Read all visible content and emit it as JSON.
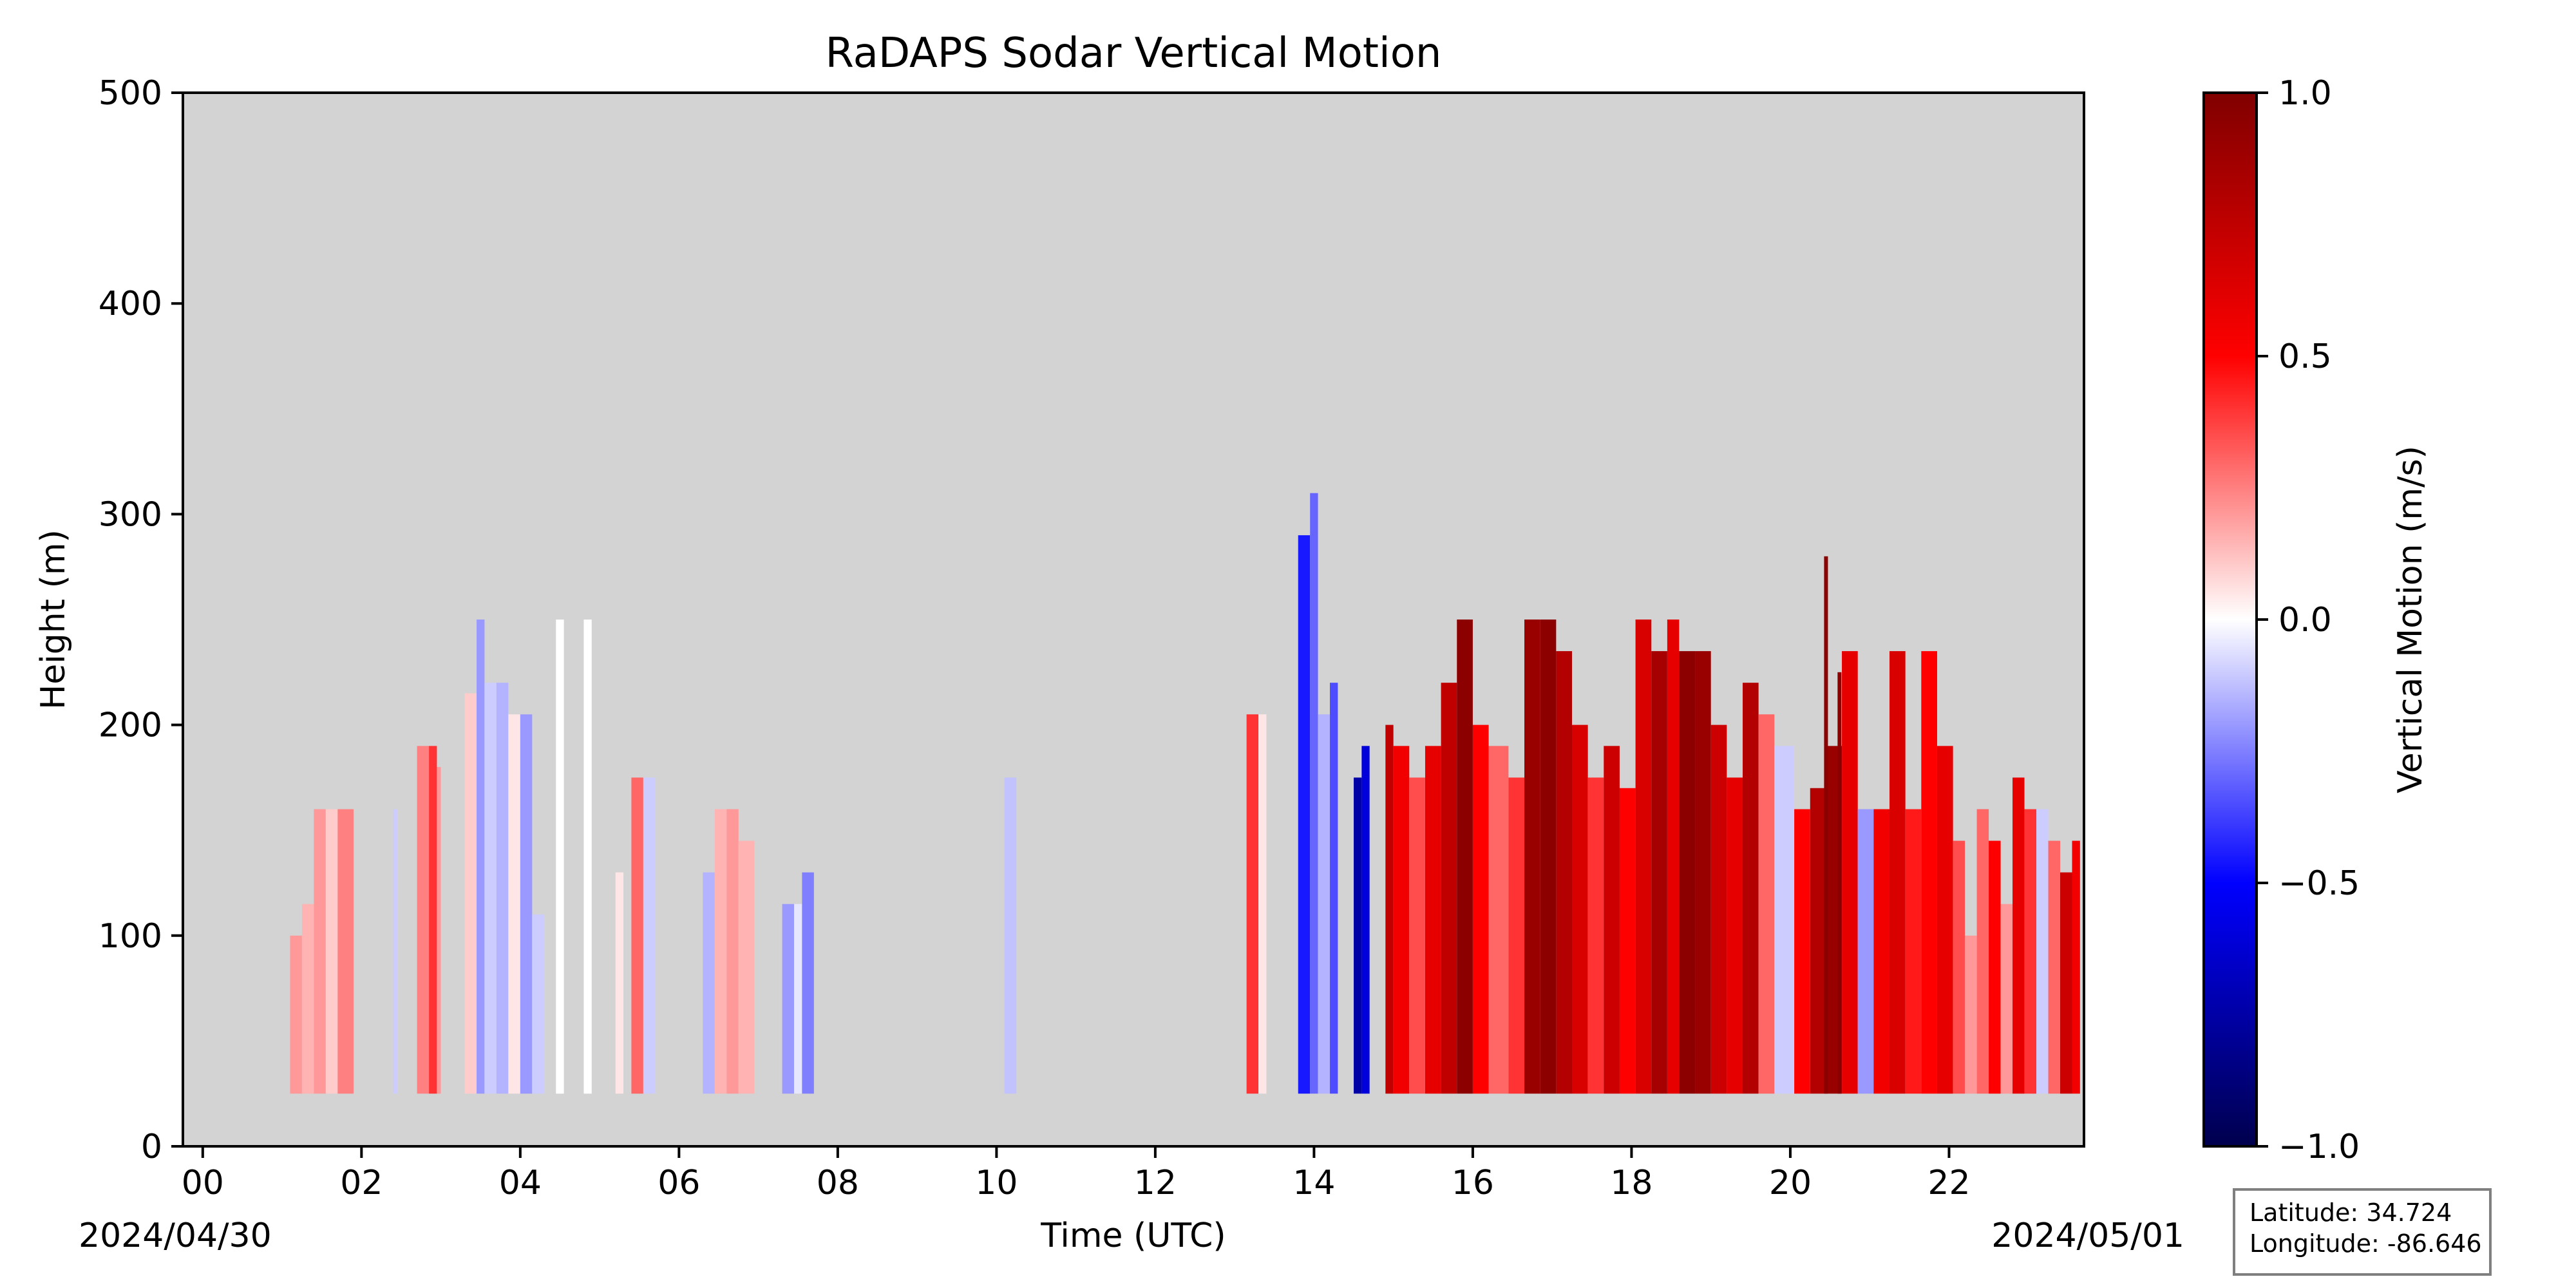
{
  "chart_data": {
    "type": "heatmap",
    "title": "RaDAPS Sodar Vertical Motion",
    "xlabel": "Time (UTC)",
    "ylabel": "Height (m)",
    "xlim": [
      -0.25,
      23.7
    ],
    "ylim": [
      0,
      500
    ],
    "x_ticks": [
      "00",
      "02",
      "04",
      "06",
      "08",
      "10",
      "12",
      "14",
      "16",
      "18",
      "20",
      "22"
    ],
    "x_tick_values": [
      0,
      2,
      4,
      6,
      8,
      10,
      12,
      14,
      16,
      18,
      20,
      22
    ],
    "y_ticks": [
      0,
      100,
      200,
      300,
      400,
      500
    ],
    "start_date": "2024/04/30",
    "end_date": "2024/05/01",
    "background_color": "#d3d3d3",
    "colorbar": {
      "label": "Vertical Motion (m/s)",
      "range": [
        -1.0,
        1.0
      ],
      "ticks": [
        "1.0",
        "0.5",
        "0.0",
        "−0.5",
        "−1.0"
      ],
      "tick_values": [
        1.0,
        0.5,
        0.0,
        -0.5,
        -1.0
      ],
      "colormap": "seismic"
    },
    "data_min_height": 25,
    "columns": [
      {
        "t0": 1.1,
        "t1": 1.25,
        "top": 100,
        "v": 0.2
      },
      {
        "t0": 1.25,
        "t1": 1.4,
        "top": 115,
        "v": 0.15
      },
      {
        "t0": 1.4,
        "t1": 1.55,
        "top": 160,
        "v": 0.2
      },
      {
        "t0": 1.55,
        "t1": 1.7,
        "top": 160,
        "v": 0.1
      },
      {
        "t0": 1.7,
        "t1": 1.9,
        "top": 160,
        "v": 0.25
      },
      {
        "t0": 2.4,
        "t1": 2.45,
        "top": 160,
        "v": -0.1
      },
      {
        "t0": 2.7,
        "t1": 2.85,
        "top": 190,
        "v": 0.25
      },
      {
        "t0": 2.85,
        "t1": 2.95,
        "top": 190,
        "v": 0.4
      },
      {
        "t0": 2.95,
        "t1": 3.0,
        "top": 180,
        "v": 0.2
      },
      {
        "t0": 3.3,
        "t1": 3.45,
        "top": 215,
        "v": 0.1
      },
      {
        "t0": 3.45,
        "t1": 3.55,
        "top": 250,
        "v": -0.2
      },
      {
        "t0": 3.55,
        "t1": 3.7,
        "top": 220,
        "v": -0.1
      },
      {
        "t0": 3.7,
        "t1": 3.85,
        "top": 220,
        "v": -0.15
      },
      {
        "t0": 3.85,
        "t1": 4.0,
        "top": 205,
        "v": 0.05
      },
      {
        "t0": 4.0,
        "t1": 4.15,
        "top": 205,
        "v": -0.2
      },
      {
        "t0": 4.15,
        "t1": 4.3,
        "top": 110,
        "v": -0.1
      },
      {
        "t0": 4.45,
        "t1": 4.55,
        "top": 250,
        "v": 0.0
      },
      {
        "t0": 4.8,
        "t1": 4.9,
        "top": 250,
        "v": 0.0
      },
      {
        "t0": 5.2,
        "t1": 5.3,
        "top": 130,
        "v": 0.05
      },
      {
        "t0": 5.4,
        "t1": 5.55,
        "top": 175,
        "v": 0.3
      },
      {
        "t0": 5.55,
        "t1": 5.7,
        "top": 175,
        "v": -0.1
      },
      {
        "t0": 6.3,
        "t1": 6.45,
        "top": 130,
        "v": -0.15
      },
      {
        "t0": 6.45,
        "t1": 6.6,
        "top": 160,
        "v": 0.15
      },
      {
        "t0": 6.6,
        "t1": 6.75,
        "top": 160,
        "v": 0.2
      },
      {
        "t0": 6.75,
        "t1": 6.95,
        "top": 145,
        "v": 0.15
      },
      {
        "t0": 7.3,
        "t1": 7.45,
        "top": 115,
        "v": -0.2
      },
      {
        "t0": 7.45,
        "t1": 7.55,
        "top": 115,
        "v": -0.05
      },
      {
        "t0": 7.55,
        "t1": 7.7,
        "top": 130,
        "v": -0.25
      },
      {
        "t0": 10.1,
        "t1": 10.25,
        "top": 175,
        "v": -0.12
      },
      {
        "t0": 13.15,
        "t1": 13.3,
        "top": 205,
        "v": 0.4
      },
      {
        "t0": 13.3,
        "t1": 13.4,
        "top": 205,
        "v": 0.05
      },
      {
        "t0": 13.8,
        "t1": 13.95,
        "top": 290,
        "v": -0.45
      },
      {
        "t0": 13.95,
        "t1": 14.05,
        "top": 310,
        "v": -0.3
      },
      {
        "t0": 14.05,
        "t1": 14.2,
        "top": 205,
        "v": -0.15
      },
      {
        "t0": 14.2,
        "t1": 14.3,
        "top": 220,
        "v": -0.35
      },
      {
        "t0": 14.5,
        "t1": 14.6,
        "top": 175,
        "v": -0.75
      },
      {
        "t0": 14.6,
        "t1": 14.7,
        "top": 190,
        "v": -0.6
      },
      {
        "t0": 14.9,
        "t1": 15.0,
        "top": 200,
        "v": 0.75
      },
      {
        "t0": 15.0,
        "t1": 15.2,
        "top": 190,
        "v": 0.55
      },
      {
        "t0": 15.2,
        "t1": 15.4,
        "top": 175,
        "v": 0.35
      },
      {
        "t0": 15.4,
        "t1": 15.6,
        "top": 190,
        "v": 0.6
      },
      {
        "t0": 15.6,
        "t1": 15.8,
        "top": 220,
        "v": 0.75
      },
      {
        "t0": 15.8,
        "t1": 16.0,
        "top": 250,
        "v": 0.95
      },
      {
        "t0": 16.0,
        "t1": 16.2,
        "top": 200,
        "v": 0.5
      },
      {
        "t0": 16.2,
        "t1": 16.45,
        "top": 190,
        "v": 0.3
      },
      {
        "t0": 16.45,
        "t1": 16.65,
        "top": 175,
        "v": 0.4
      },
      {
        "t0": 16.65,
        "t1": 16.85,
        "top": 250,
        "v": 0.9
      },
      {
        "t0": 16.85,
        "t1": 17.05,
        "top": 250,
        "v": 0.95
      },
      {
        "t0": 17.05,
        "t1": 17.25,
        "top": 235,
        "v": 0.8
      },
      {
        "t0": 17.25,
        "t1": 17.45,
        "top": 200,
        "v": 0.65
      },
      {
        "t0": 17.45,
        "t1": 17.65,
        "top": 175,
        "v": 0.4
      },
      {
        "t0": 17.65,
        "t1": 17.85,
        "top": 190,
        "v": 0.7
      },
      {
        "t0": 17.85,
        "t1": 18.05,
        "top": 170,
        "v": 0.5
      },
      {
        "t0": 18.05,
        "t1": 18.25,
        "top": 250,
        "v": 0.65
      },
      {
        "t0": 18.25,
        "t1": 18.45,
        "top": 235,
        "v": 0.85
      },
      {
        "t0": 18.45,
        "t1": 18.6,
        "top": 250,
        "v": 0.6
      },
      {
        "t0": 18.6,
        "t1": 18.8,
        "top": 235,
        "v": 0.95
      },
      {
        "t0": 18.8,
        "t1": 19.0,
        "top": 235,
        "v": 0.9
      },
      {
        "t0": 19.0,
        "t1": 19.2,
        "top": 200,
        "v": 0.7
      },
      {
        "t0": 19.2,
        "t1": 19.4,
        "top": 175,
        "v": 0.6
      },
      {
        "t0": 19.4,
        "t1": 19.6,
        "top": 220,
        "v": 0.8
      },
      {
        "t0": 19.6,
        "t1": 19.8,
        "top": 205,
        "v": 0.3
      },
      {
        "t0": 19.8,
        "t1": 20.05,
        "top": 190,
        "v": -0.1
      },
      {
        "t0": 20.05,
        "t1": 20.25,
        "top": 160,
        "v": 0.5
      },
      {
        "t0": 20.25,
        "t1": 20.45,
        "top": 170,
        "v": 0.8
      },
      {
        "t0": 20.45,
        "t1": 20.65,
        "top": 190,
        "v": 0.9
      },
      {
        "t0": 20.65,
        "t1": 20.85,
        "top": 235,
        "v": 0.6
      },
      {
        "t0": 20.85,
        "t1": 21.05,
        "top": 160,
        "v": -0.2
      },
      {
        "t0": 21.05,
        "t1": 21.25,
        "top": 160,
        "v": 0.55
      },
      {
        "t0": 21.25,
        "t1": 21.45,
        "top": 235,
        "v": 0.65
      },
      {
        "t0": 21.45,
        "t1": 21.65,
        "top": 160,
        "v": 0.45
      },
      {
        "t0": 21.65,
        "t1": 21.85,
        "top": 235,
        "v": 0.5
      },
      {
        "t0": 21.85,
        "t1": 22.05,
        "top": 190,
        "v": 0.6
      },
      {
        "t0": 22.05,
        "t1": 22.2,
        "top": 145,
        "v": 0.35
      },
      {
        "t0": 22.2,
        "t1": 22.35,
        "top": 100,
        "v": 0.2
      },
      {
        "t0": 22.35,
        "t1": 22.5,
        "top": 160,
        "v": 0.3
      },
      {
        "t0": 22.5,
        "t1": 22.65,
        "top": 145,
        "v": 0.5
      },
      {
        "t0": 22.65,
        "t1": 22.8,
        "top": 115,
        "v": 0.2
      },
      {
        "t0": 22.8,
        "t1": 22.95,
        "top": 175,
        "v": 0.6
      },
      {
        "t0": 22.95,
        "t1": 23.1,
        "top": 160,
        "v": 0.4
      },
      {
        "t0": 23.1,
        "t1": 23.25,
        "top": 160,
        "v": -0.1
      },
      {
        "t0": 23.25,
        "t1": 23.4,
        "top": 145,
        "v": 0.3
      },
      {
        "t0": 23.4,
        "t1": 23.55,
        "top": 130,
        "v": 0.7
      },
      {
        "t0": 23.55,
        "t1": 23.65,
        "top": 145,
        "v": 0.55
      }
    ],
    "spikes": [
      {
        "t": 20.45,
        "top": 280
      },
      {
        "t": 20.62,
        "top": 225
      }
    ]
  },
  "info_box": {
    "latitude": "Latitude: 34.724",
    "longitude": "Longitude: -86.646"
  }
}
